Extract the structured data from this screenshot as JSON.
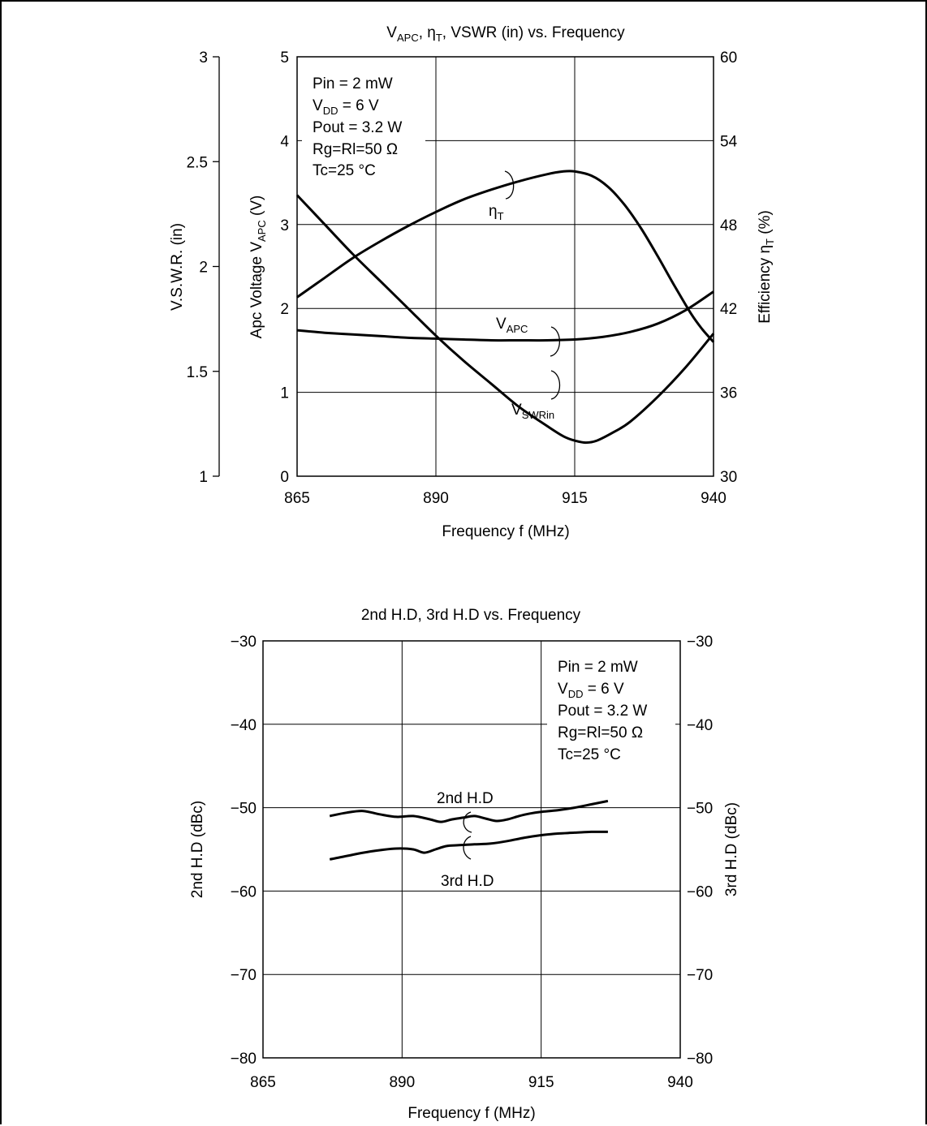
{
  "chart_data": [
    {
      "type": "line",
      "title": "V<sub>APC</sub>, η<sub>T</sub>, VSWR (in) vs. Frequency",
      "xlabel": "Frequency  f  (MHz)",
      "y_left_outer_label": "V.S.W.R. (in)",
      "y_left_label": "Apc Voltage  V<sub>APC</sub>  (V)",
      "y_right_label": "Efficiency  η<sub>T</sub>  (%)",
      "xlim": [
        865,
        940
      ],
      "x_ticks": [
        "865",
        "890",
        "915",
        "940"
      ],
      "y_left_lim": [
        0,
        5
      ],
      "y_left_ticks": [
        "0",
        "1",
        "2",
        "3",
        "4",
        "5"
      ],
      "y_vswr_lim": [
        1,
        3
      ],
      "y_vswr_ticks": [
        "1",
        "1.5",
        "2",
        "2.5",
        "3"
      ],
      "y_right_lim": [
        30,
        60
      ],
      "y_right_ticks": [
        "30",
        "36",
        "42",
        "48",
        "54",
        "60"
      ],
      "grid": true,
      "conditions": [
        "Pin = 2 mW",
        "V<sub>DD</sub> = 6 V",
        "Pout = 3.2 W",
        "Rg=Rl=50 Ω",
        "Tc=25 °C"
      ],
      "series": [
        {
          "name": "η<sub>T</sub>",
          "axis": "right",
          "x": [
            865,
            870,
            875,
            880,
            885,
            890,
            895,
            900,
            905,
            910,
            913,
            915,
            918,
            921,
            924,
            927,
            930,
            933,
            936,
            938,
            940
          ],
          "y": [
            42.8,
            44.2,
            45.6,
            46.8,
            47.9,
            48.9,
            49.8,
            50.5,
            51.1,
            51.6,
            51.8,
            51.8,
            51.5,
            50.7,
            49.4,
            47.7,
            45.7,
            43.6,
            41.6,
            40.5,
            39.6
          ]
        },
        {
          "name": "V<sub>APC</sub>",
          "axis": "left",
          "x": [
            865,
            870,
            875,
            880,
            885,
            890,
            895,
            900,
            905,
            910,
            915,
            920,
            925,
            930,
            935,
            940
          ],
          "y": [
            1.74,
            1.71,
            1.69,
            1.67,
            1.65,
            1.64,
            1.63,
            1.62,
            1.62,
            1.62,
            1.63,
            1.66,
            1.72,
            1.82,
            1.98,
            2.2
          ]
        },
        {
          "name": "V<sub>SWRin</sub>",
          "axis": "vswr",
          "x": [
            865,
            870,
            875,
            880,
            885,
            890,
            895,
            900,
            905,
            910,
            913,
            915,
            917,
            919,
            922,
            925,
            930,
            935,
            940
          ],
          "y": [
            2.34,
            2.2,
            2.06,
            1.93,
            1.8,
            1.67,
            1.55,
            1.44,
            1.33,
            1.24,
            1.19,
            1.17,
            1.16,
            1.17,
            1.21,
            1.26,
            1.38,
            1.52,
            1.68
          ]
        }
      ]
    },
    {
      "type": "line",
      "title": "2nd H.D, 3rd H.D vs. Frequency",
      "xlabel": "Frequency f (MHz)",
      "y_left_label": "2nd H.D  (dBc)",
      "y_right_label": "3rd H.D  (dBc)",
      "xlim": [
        865,
        940
      ],
      "x_ticks": [
        "865",
        "890",
        "915",
        "940"
      ],
      "ylim": [
        -80,
        -30
      ],
      "y_ticks": [
        "−30",
        "−40",
        "−50",
        "−60",
        "−70",
        "−80"
      ],
      "grid": true,
      "conditions": [
        "Pin = 2 mW",
        "V<sub>DD</sub> = 6 V",
        "Pout = 3.2 W",
        "Rg=Rl=50 Ω",
        "Tc=25 °C"
      ],
      "series": [
        {
          "name": "2nd H.D",
          "x": [
            877,
            880,
            883,
            886,
            889,
            892,
            895,
            897,
            899,
            901,
            903,
            905,
            907,
            909,
            911,
            913,
            915,
            918,
            921,
            924,
            927
          ],
          "y": [
            -51.0,
            -50.6,
            -50.4,
            -50.8,
            -51.1,
            -51.0,
            -51.4,
            -51.7,
            -51.4,
            -51.2,
            -51.0,
            -51.3,
            -51.6,
            -51.4,
            -51.0,
            -50.7,
            -50.5,
            -50.3,
            -50.0,
            -49.6,
            -49.2
          ]
        },
        {
          "name": "3rd H.D",
          "x": [
            877,
            880,
            883,
            886,
            889,
            892,
            894,
            896,
            898,
            900,
            903,
            906,
            909,
            912,
            915,
            918,
            921,
            924,
            927
          ],
          "y": [
            -56.2,
            -55.8,
            -55.4,
            -55.1,
            -54.9,
            -55.0,
            -55.4,
            -55.0,
            -54.6,
            -54.5,
            -54.4,
            -54.3,
            -54.0,
            -53.6,
            -53.3,
            -53.1,
            -53.0,
            -52.9,
            -52.9
          ]
        }
      ]
    }
  ]
}
